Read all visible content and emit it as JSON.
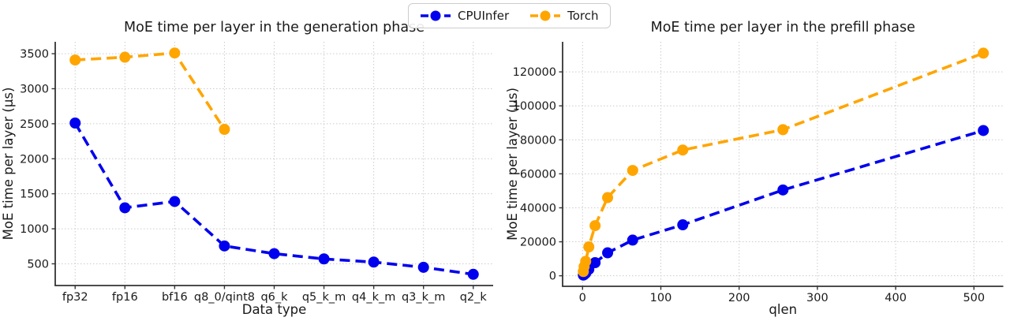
{
  "legend": {
    "position": "figure-top-center",
    "items": [
      {
        "label": "CPUInfer",
        "color": "#0000ee"
      },
      {
        "label": "Torch",
        "color": "#ffa500"
      }
    ]
  },
  "colors": {
    "cpuinfer": "#0000ee",
    "torch": "#ffa500",
    "grid": "#cccccc",
    "spine": "#333333",
    "text": "#1a1a1a"
  },
  "chart_data": [
    {
      "type": "line",
      "title": "MoE time per layer in the generation phase",
      "xlabel": "Data type",
      "ylabel": "MoE time per layer (µs)",
      "x_type": "categorical",
      "categories": [
        "fp32",
        "fp16",
        "bf16",
        "q8_0/qint8",
        "q6_k",
        "q5_k_m",
        "q4_k_m",
        "q3_k_m",
        "q2_k"
      ],
      "yticks": [
        500,
        1000,
        1500,
        2000,
        2500,
        3000,
        3500
      ],
      "xlim": [
        -0.4,
        8.4
      ],
      "ylim": [
        190,
        3670
      ],
      "grid": "dotted",
      "line_style": "dashed",
      "series": [
        {
          "name": "CPUInfer",
          "color": "#0000ee",
          "values": [
            2510,
            1300,
            1390,
            755,
            645,
            570,
            525,
            450,
            350
          ]
        },
        {
          "name": "Torch",
          "color": "#ffa500",
          "values": [
            3410,
            3450,
            3510,
            2420,
            null,
            null,
            null,
            null,
            null
          ]
        }
      ]
    },
    {
      "type": "line",
      "title": "MoE time per layer in the prefill phase",
      "xlabel": "qlen",
      "ylabel": "MoE time per layer (µs)",
      "x_type": "linear",
      "x": [
        1,
        2,
        4,
        8,
        16,
        32,
        64,
        128,
        256,
        512
      ],
      "xticks": [
        0,
        100,
        200,
        300,
        400,
        500
      ],
      "yticks": [
        0,
        20000,
        40000,
        60000,
        80000,
        100000,
        120000
      ],
      "xlim": [
        -25.5,
        537.5
      ],
      "ylim": [
        -6200,
        137700
      ],
      "grid": "dotted",
      "line_style": "dashed",
      "series": [
        {
          "name": "CPUInfer",
          "color": "#0000ee",
          "values": [
            400,
            700,
            1500,
            3800,
            7700,
            13500,
            21000,
            30000,
            50500,
            85500
          ]
        },
        {
          "name": "Torch",
          "color": "#ffa500",
          "values": [
            2500,
            5400,
            8500,
            17000,
            29500,
            46000,
            62000,
            74000,
            86000,
            131000
          ]
        }
      ]
    }
  ]
}
